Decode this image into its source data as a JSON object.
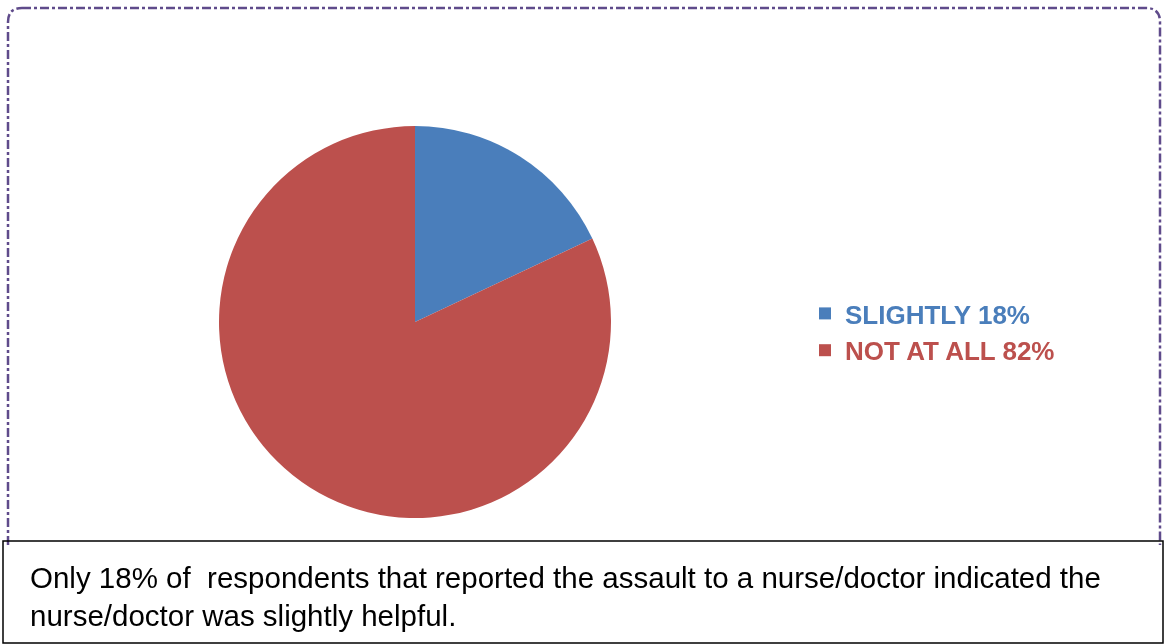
{
  "chart_data": {
    "type": "pie",
    "categories": [
      "SLIGHTLY",
      "NOT AT ALL"
    ],
    "values": [
      18,
      82
    ],
    "colors": [
      "#4a7ebb",
      "#bc504d"
    ],
    "value_labels": [
      "18%",
      "82%"
    ],
    "legend": "right",
    "annotations": [
      "Only 18% of  respondents that reported the assault to a nurse/doctor indicated the nurse/doctor was slightly helpful."
    ]
  }
}
